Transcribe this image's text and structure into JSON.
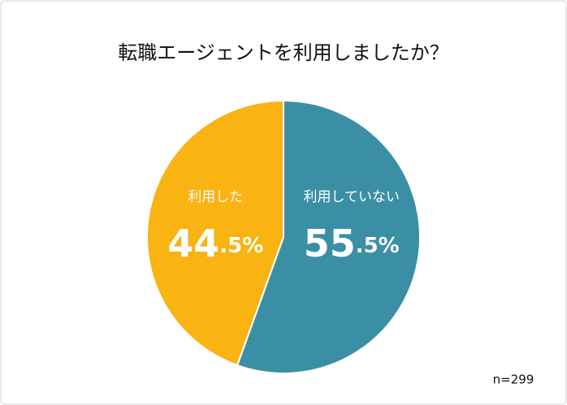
{
  "chart_data": {
    "type": "pie",
    "title": "転職エージェントを利用しましたか？",
    "categories": [
      "利用していない",
      "利用した"
    ],
    "values": [
      55.5,
      44.5
    ],
    "value_labels": [
      "55.5%",
      "44.5%"
    ],
    "colors": [
      "#3b8fa5",
      "#f9b312"
    ],
    "note": "n=299"
  }
}
